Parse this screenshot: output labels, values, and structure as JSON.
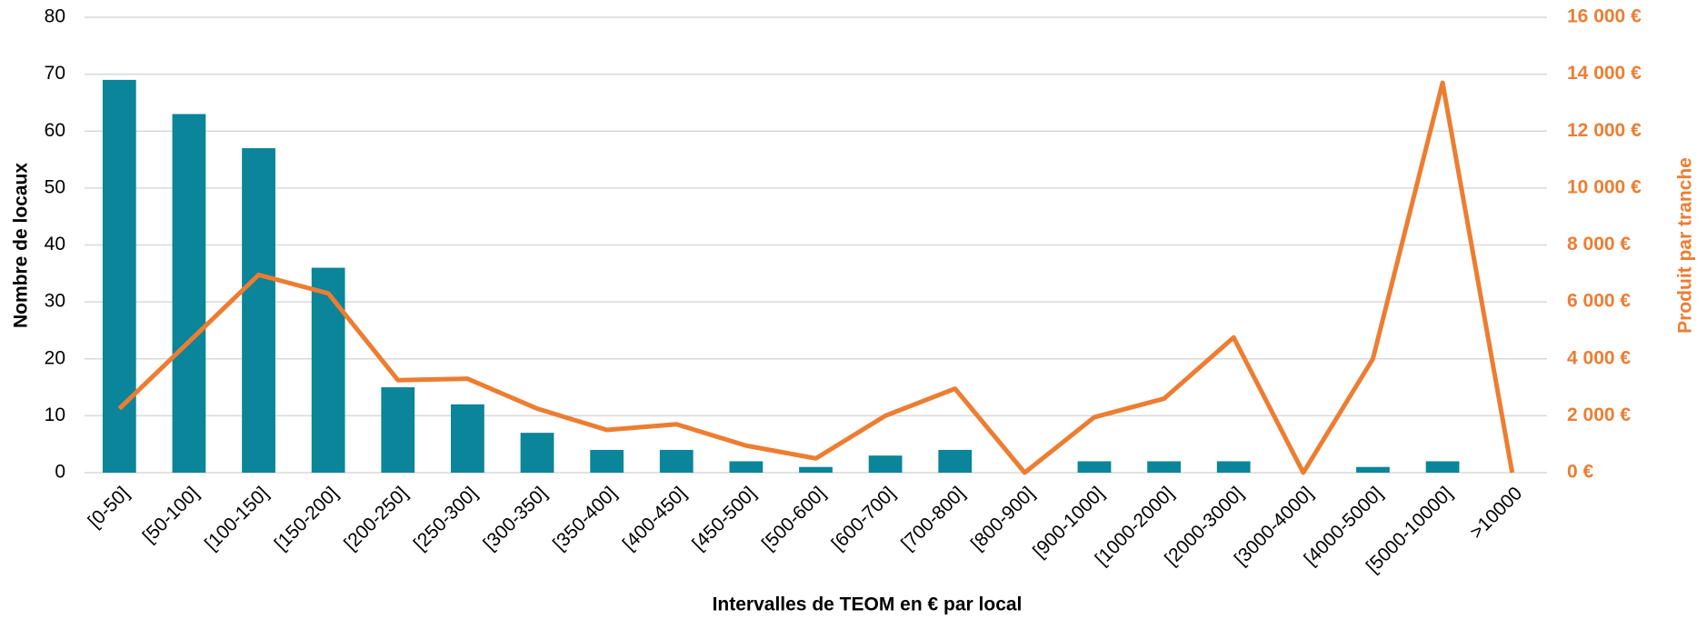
{
  "chart_data": {
    "type": "bar-line",
    "x_label": "Intervalles de TEOM en € par local",
    "y_label": "Nombre de locaux",
    "y2_label": "Produit par tranche",
    "categories": [
      "[0-50]",
      "[50-100]",
      "[100-150]",
      "[150-200]",
      "[200-250]",
      "[250-300]",
      "[300-350]",
      "[350-400]",
      "[400-450]",
      "[450-500]",
      "[500-600]",
      "[600-700]",
      "[700-800]",
      "[800-900]",
      "[900-1000]",
      "[1000-2000]",
      "[2000-3000]",
      "[3000-4000]",
      "[4000-5000]",
      "[5000-10000]",
      ">10000"
    ],
    "series": [
      {
        "type": "bar",
        "color": "#0a8599",
        "values": [
          69,
          63,
          57,
          36,
          15,
          12,
          7,
          4,
          4,
          2,
          1,
          3,
          4,
          0,
          2,
          2,
          2,
          0,
          1,
          2,
          0
        ]
      },
      {
        "type": "line",
        "axis": "y2",
        "color": "#ed7d31",
        "values": [
          2250,
          4600,
          6950,
          6300,
          3250,
          3300,
          2250,
          1500,
          1700,
          950,
          500,
          2000,
          2950,
          0,
          1950,
          2600,
          4750,
          0,
          4000,
          13700,
          0
        ]
      }
    ],
    "ylim": [
      0,
      80
    ],
    "yticks": [
      0,
      10,
      20,
      30,
      40,
      50,
      60,
      70,
      80
    ],
    "y2lim": [
      0,
      16000
    ],
    "y2ticks": [
      {
        "value": 0,
        "label": "0 €"
      },
      {
        "value": 2000,
        "label": "2 000 €"
      },
      {
        "value": 4000,
        "label": "4 000 €"
      },
      {
        "value": 6000,
        "label": "6 000 €"
      },
      {
        "value": 8000,
        "label": "8 000 €"
      },
      {
        "value": 10000,
        "label": "10 000 €"
      },
      {
        "value": 12000,
        "label": "12 000 €"
      },
      {
        "value": 14000,
        "label": "14 000 €"
      },
      {
        "value": 16000,
        "label": "16 000 €"
      }
    ],
    "grid": true
  }
}
